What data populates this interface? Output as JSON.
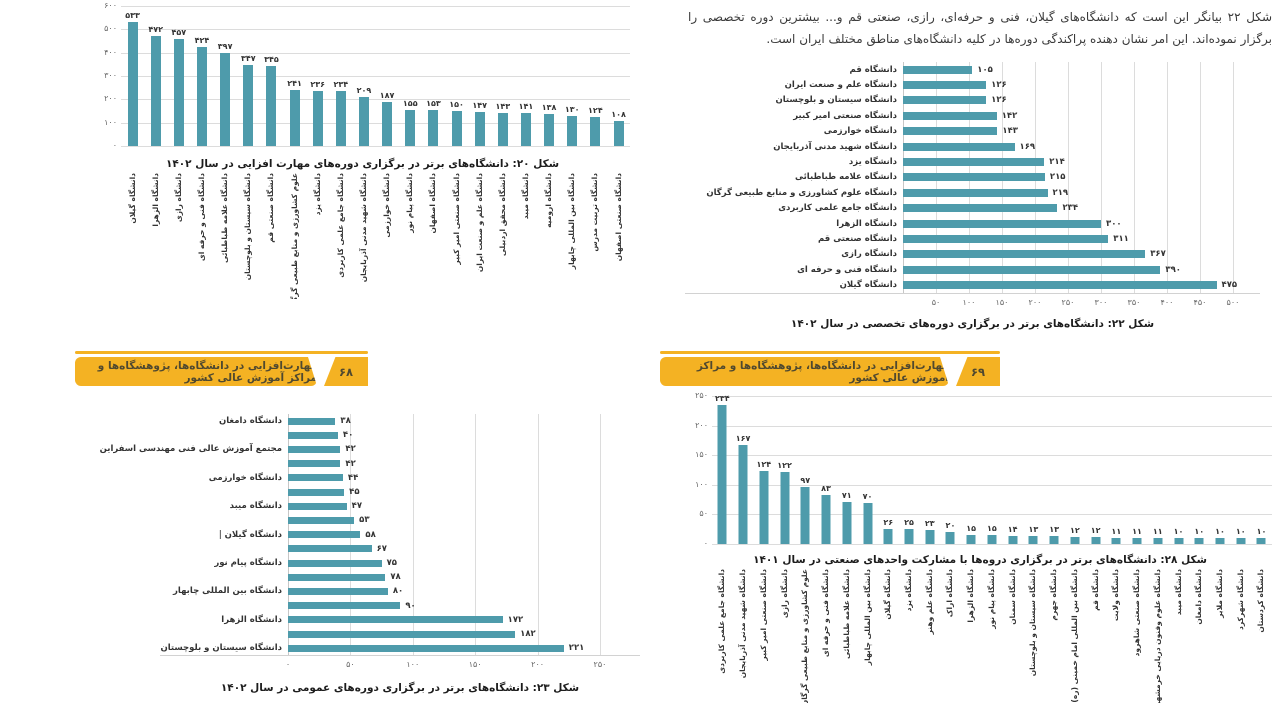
{
  "colors": {
    "bar": "#4e9bab",
    "banner": "#f4b223",
    "grid": "#dcdcdc"
  },
  "paragraph": {
    "text": "شکل ۲۲ بیانگر این است که دانشگاه‌های گیلان، فنی و حرفه‌ای، رازی، صنعتی قم و... بیشترین دوره تخصصی را برگزار نموده‌اند. این امر نشان دهنده پراکندگی دوره‌ها در کلیه دانشگاه‌های مناطق مختلف ایران است."
  },
  "banners": {
    "left": {
      "title": "مهارت‌افزایی در دانشگاه‌ها، پژوهشگاه‌ها و مراکز آموزش عالی کشور",
      "page_number": "۶۸"
    },
    "right": {
      "title": "مهارت‌افزایی در دانشگاه‌ها، پژوهشگاه‌ها و مراکز آموزش عالی کشور",
      "page_number": "۶۹"
    }
  },
  "chart_data": [
    {
      "id": "chart20",
      "type": "bar",
      "orientation": "vertical",
      "title": "شکل ۲۰: دانشگاه‌های برتر در برگزاری دوره‌های مهارت افزایی در سال ۱۴۰۲",
      "ylim": [
        0,
        600
      ],
      "yticks": [
        {
          "value": 600,
          "label": "۶۰۰"
        },
        {
          "value": 500,
          "label": "۵۰۰"
        },
        {
          "value": 400,
          "label": "۴۰۰"
        },
        {
          "value": 300,
          "label": "۳۰۰"
        },
        {
          "value": 200,
          "label": "۲۰۰"
        },
        {
          "value": 100,
          "label": "۱۰۰"
        },
        {
          "value": 0,
          "label": "۰"
        }
      ],
      "categories": [
        "دانشگاه گیلان",
        "دانشگاه الزهرا",
        "دانشگاه رازی",
        "دانشگاه فنی و حرفه ای",
        "دانشگاه علامه طباطبائی",
        "دانشگاه سیستان و بلوچستان",
        "دانشگاه صنعتی قم",
        "علوم کشاورزی و منابع طبیعی گرگان",
        "دانشگاه یزد",
        "دانشگاه جامع علمی کاربردی",
        "دانشگاه شهید مدنی آذربایجان",
        "دانشگاه خوارزمی",
        "دانشگاه پیام نور",
        "دانشگاه اصفهان",
        "دانشگاه صنعتی امیر کبیر",
        "دانشگاه علم و صنعت ایران",
        "دانشگاه محقق اردبیلی",
        "دانشگاه میبد",
        "دانشگاه ارومیه",
        "دانشگاه بین المللی چابهار",
        "دانشگاه تربیت مدرس",
        "دانشگاه صنعتی اصفهان"
      ],
      "values": [
        533,
        472,
        457,
        424,
        397,
        347,
        345,
        241,
        236,
        234,
        209,
        187,
        155,
        153,
        150,
        147,
        143,
        141,
        138,
        130,
        124,
        108
      ],
      "value_labels": [
        "۵۳۳",
        "۴۷۲",
        "۴۵۷",
        "۴۲۴",
        "۳۹۷",
        "۳۴۷",
        "۳۴۵",
        "۲۴۱",
        "۲۳۶",
        "۲۳۴",
        "۲۰۹",
        "۱۸۷",
        "۱۵۵",
        "۱۵۳",
        "۱۵۰",
        "۱۴۷",
        "۱۴۳",
        "۱۴۱",
        "۱۳۸",
        "۱۳۰",
        "۱۲۴",
        "۱۰۸"
      ]
    },
    {
      "id": "chart22",
      "type": "bar",
      "orientation": "horizontal",
      "title": "شکل ۲۲: دانشگاه‌های برتر در برگزاری دوره‌های تخصصی در سال ۱۴۰۲",
      "xlim": [
        0,
        500
      ],
      "xticks": [
        {
          "value": 50,
          "label": "۵۰"
        },
        {
          "value": 100,
          "label": "۱۰۰"
        },
        {
          "value": 150,
          "label": "۱۵۰"
        },
        {
          "value": 200,
          "label": "۲۰۰"
        },
        {
          "value": 250,
          "label": "۲۵۰"
        },
        {
          "value": 300,
          "label": "۳۰۰"
        },
        {
          "value": 350,
          "label": "۳۵۰"
        },
        {
          "value": 400,
          "label": "۴۰۰"
        },
        {
          "value": 450,
          "label": "۴۵۰"
        },
        {
          "value": 500,
          "label": "۵۰۰"
        }
      ],
      "categories": [
        "دانشگاه قم",
        "دانشگاه علم و صنعت ایران",
        "دانشگاه سیستان و بلوچستان",
        "دانشگاه صنعتی امیر کبیر",
        "دانشگاه خوارزمی",
        "دانشگاه شهید مدنی آذربایجان",
        "دانشگاه یزد",
        "دانشگاه علامه طباطبائی",
        "دانشگاه علوم کشاورزی و منابع طبیعی گرگان",
        "دانشگاه جامع علمی کاربردی",
        "دانشگاه الزهرا",
        "دانشگاه صنعتی قم",
        "دانشگاه رازی",
        "دانشگاه فنی و حرفه ای",
        "دانشگاه گیلان"
      ],
      "values": [
        105,
        126,
        126,
        142,
        143,
        169,
        214,
        215,
        219,
        234,
        300,
        311,
        367,
        390,
        475
      ],
      "value_labels": [
        "۱۰۵",
        "۱۲۶",
        "۱۲۶",
        "۱۴۲",
        "۱۴۳",
        "۱۶۹",
        "۲۱۴",
        "۲۱۵",
        "۲۱۹",
        "۲۳۴",
        "۳۰۰",
        "۳۱۱",
        "۳۶۷",
        "۳۹۰",
        "۴۷۵"
      ]
    },
    {
      "id": "chart23",
      "type": "bar",
      "orientation": "horizontal",
      "title": "شکل ۲۳: دانشگاه‌های برتر در برگزاری دوره‌های عمومی در سال ۱۴۰۲",
      "xlim": [
        0,
        250
      ],
      "xticks": [
        {
          "value": 0,
          "label": "۰"
        },
        {
          "value": 50,
          "label": "۵۰"
        },
        {
          "value": 100,
          "label": "۱۰۰"
        },
        {
          "value": 150,
          "label": "۱۵۰"
        },
        {
          "value": 200,
          "label": "۲۰۰"
        },
        {
          "value": 250,
          "label": "۲۵۰"
        }
      ],
      "cursor_index": 8,
      "categories": [
        "دانشگاه دامغان",
        "",
        "مجتمع آموزش عالی فنی مهندسی اسفراین",
        "",
        "دانشگاه خوارزمی",
        "",
        "دانشگاه میبد",
        "",
        "دانشگاه گیلان",
        "",
        "دانشگاه پیام نور",
        "",
        "دانشگاه بین المللی چابهار",
        "",
        "دانشگاه الزهرا",
        "",
        "دانشگاه سیستان و بلوچستان"
      ],
      "values": [
        38,
        40,
        42,
        42,
        44,
        45,
        47,
        53,
        58,
        67,
        75,
        78,
        80,
        90,
        172,
        182,
        221
      ],
      "value_labels": [
        "۳۸",
        "۴۰",
        "۴۲",
        "۴۲",
        "۴۴",
        "۴۵",
        "۴۷",
        "۵۳",
        "۵۸",
        "۶۷",
        "۷۵",
        "۷۸",
        "۸۰",
        "۹۰",
        "۱۷۲",
        "۱۸۲",
        "۲۲۱"
      ]
    },
    {
      "id": "chart28",
      "type": "bar",
      "orientation": "vertical",
      "title": "شکل ۲۸: دانشگاه‌های برتر در برگزاری دروه‌ها با مشارکت واحدهای صنعتی در سال ۱۴۰۱",
      "ylim": [
        0,
        250
      ],
      "yticks": [
        {
          "value": 250,
          "label": "۲۵۰"
        },
        {
          "value": 200,
          "label": "۲۰۰"
        },
        {
          "value": 150,
          "label": "۱۵۰"
        },
        {
          "value": 100,
          "label": "۱۰۰"
        },
        {
          "value": 50,
          "label": "۵۰"
        },
        {
          "value": 0,
          "label": "۰"
        }
      ],
      "categories": [
        "دانشگاه جامع علمی کاربردی",
        "دانشگاه شهید مدنی آذربایجان",
        "دانشگاه صنعتی امیر کبیر",
        "دانشگاه رازی",
        "علوم کشاورزی و منابع طبیعی گرگان",
        "دانشگاه فنی و حرفه ای",
        "دانشگاه علامه طباطبائی",
        "دانشگاه بین المللی چابهار",
        "دانشگاه گیلان",
        "دانشگاه یزد",
        "دانشگاه علم وهنر",
        "دانشگاه اراک",
        "دانشگاه الزهرا",
        "دانشگاه پیام نور",
        "دانشگاه سمنان",
        "دانشگاه سیستان و بلوچستان",
        "دانشگاه جهرم",
        "دانشگاه بین المللی امام خمینی (ره)",
        "دانشگاه قم",
        "دانشگاه ولایت",
        "دانشگاه صنعتی شاهرود",
        "دانشگاه علوم وفنون دریایی خرمشهر",
        "دانشگاه میبد",
        "دانشگاه دامغان",
        "دانشگاه ملایر",
        "دانشگاه شهرکرد",
        "دانشگاه کردستان"
      ],
      "values": [
        234,
        167,
        124,
        122,
        97,
        83,
        71,
        70,
        26,
        25,
        23,
        20,
        15,
        15,
        14,
        13,
        13,
        12,
        12,
        11,
        11,
        11,
        10,
        10,
        10,
        10,
        10
      ],
      "value_labels": [
        "۲۳۴",
        "۱۶۷",
        "۱۲۴",
        "۱۲۲",
        "۹۷",
        "۸۳",
        "۷۱",
        "۷۰",
        "۲۶",
        "۲۵",
        "۲۳",
        "۲۰",
        "۱۵",
        "۱۵",
        "۱۴",
        "۱۳",
        "۱۳",
        "۱۲",
        "۱۲",
        "۱۱",
        "۱۱",
        "۱۱",
        "۱۰",
        "۱۰",
        "۱۰",
        "۱۰",
        "۱۰"
      ]
    }
  ]
}
